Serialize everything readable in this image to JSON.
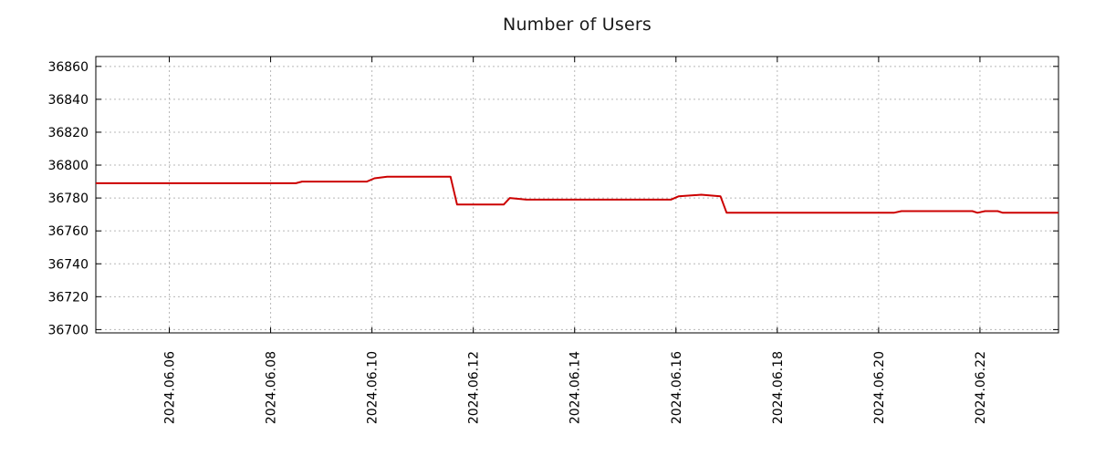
{
  "chart_data": {
    "type": "line",
    "title": "Number of Users",
    "x_range": [
      4.55,
      23.55
    ],
    "y_range": [
      36698,
      36866
    ],
    "grid": true,
    "legend": "none",
    "grid_color": "#b8b8b8",
    "axis_color": "#000000",
    "text_color": "#000000",
    "background": "#ffffff",
    "x_ticks": [
      {
        "v": 6,
        "label": "2024.06.06"
      },
      {
        "v": 8,
        "label": "2024.06.08"
      },
      {
        "v": 10,
        "label": "2024.06.10"
      },
      {
        "v": 12,
        "label": "2024.06.12"
      },
      {
        "v": 14,
        "label": "2024.06.14"
      },
      {
        "v": 16,
        "label": "2024.06.16"
      },
      {
        "v": 18,
        "label": "2024.06.18"
      },
      {
        "v": 20,
        "label": "2024.06.20"
      },
      {
        "v": 22,
        "label": "2024.06.22"
      }
    ],
    "y_ticks": [
      {
        "v": 36700,
        "label": "36700"
      },
      {
        "v": 36720,
        "label": "36720"
      },
      {
        "v": 36740,
        "label": "36740"
      },
      {
        "v": 36760,
        "label": "36760"
      },
      {
        "v": 36780,
        "label": "36780"
      },
      {
        "v": 36800,
        "label": "36800"
      },
      {
        "v": 36820,
        "label": "36820"
      },
      {
        "v": 36840,
        "label": "36840"
      },
      {
        "v": 36860,
        "label": "36860"
      }
    ],
    "series": [
      {
        "name": "Number of Users",
        "color": "#cc0000",
        "points": [
          [
            4.55,
            36789
          ],
          [
            8.5,
            36789
          ],
          [
            8.62,
            36790
          ],
          [
            9.9,
            36790
          ],
          [
            10.05,
            36792
          ],
          [
            10.3,
            36793
          ],
          [
            11.55,
            36793
          ],
          [
            11.68,
            36776
          ],
          [
            12.6,
            36776
          ],
          [
            12.72,
            36780
          ],
          [
            13.05,
            36779
          ],
          [
            15.9,
            36779
          ],
          [
            16.05,
            36781
          ],
          [
            16.5,
            36782
          ],
          [
            16.88,
            36781
          ],
          [
            17.0,
            36771
          ],
          [
            20.3,
            36771
          ],
          [
            20.45,
            36772
          ],
          [
            21.85,
            36772
          ],
          [
            21.95,
            36771
          ],
          [
            22.1,
            36772
          ],
          [
            22.35,
            36772
          ],
          [
            22.45,
            36771
          ],
          [
            23.55,
            36771
          ]
        ]
      }
    ]
  }
}
